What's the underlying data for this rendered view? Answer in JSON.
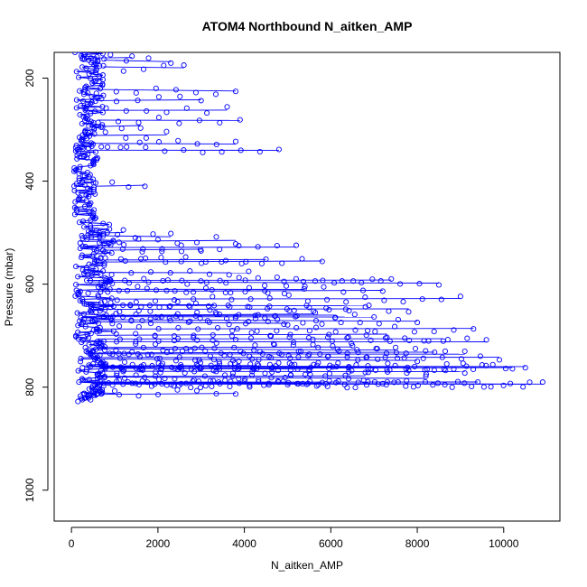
{
  "chart_data": {
    "type": "scatter",
    "title": "ATOM4 Northbound N_aitken_AMP",
    "xlabel": "N_aitken_AMP",
    "ylabel": "Pressure (mbar)",
    "xlim": [
      -400,
      11300
    ],
    "ylim": [
      1060,
      150
    ],
    "y_reversed": true,
    "x_ticks": [
      0,
      2000,
      4000,
      6000,
      8000,
      10000
    ],
    "y_ticks": [
      200,
      400,
      600,
      800,
      1000
    ],
    "grid": false,
    "legend": "none",
    "series": [
      {
        "style": "b",
        "marker": "open-circle",
        "color": "#0000ff",
        "points": [
          [
            250,
            158
          ],
          [
            1400,
            160
          ],
          [
            2300,
            168
          ],
          [
            2600,
            180
          ],
          [
            3800,
            225
          ],
          [
            3000,
            242
          ],
          [
            3600,
            262
          ],
          [
            3900,
            282
          ],
          [
            1600,
            292
          ],
          [
            2200,
            310
          ],
          [
            3800,
            328
          ],
          [
            4800,
            340
          ],
          [
            600,
            352
          ],
          [
            1700,
            408
          ],
          [
            1200,
            500
          ],
          [
            2300,
            508
          ],
          [
            3800,
            515
          ],
          [
            5200,
            528
          ],
          [
            3000,
            532
          ],
          [
            4500,
            552
          ],
          [
            5800,
            555
          ],
          [
            4100,
            578
          ],
          [
            7400,
            592
          ],
          [
            8500,
            598
          ],
          [
            5400,
            610
          ],
          [
            7200,
            612
          ],
          [
            9000,
            628
          ],
          [
            3300,
            640
          ],
          [
            6800,
            642
          ],
          [
            7800,
            648
          ],
          [
            5600,
            658
          ],
          [
            6100,
            660
          ],
          [
            7000,
            664
          ],
          [
            8000,
            672
          ],
          [
            5000,
            676
          ],
          [
            9300,
            686
          ],
          [
            7300,
            697
          ],
          [
            8600,
            706
          ],
          [
            9600,
            712
          ],
          [
            6500,
            722
          ],
          [
            7500,
            728
          ],
          [
            8400,
            732
          ],
          [
            9100,
            736
          ],
          [
            9900,
            742
          ],
          [
            8000,
            748
          ],
          [
            9500,
            760
          ],
          [
            10500,
            760
          ],
          [
            7800,
            762
          ],
          [
            10200,
            762
          ],
          [
            3000,
            764
          ],
          [
            4300,
            758
          ],
          [
            5500,
            765
          ],
          [
            9100,
            770
          ],
          [
            6800,
            778
          ],
          [
            8200,
            783
          ],
          [
            9400,
            790
          ],
          [
            5800,
            792
          ],
          [
            7200,
            794
          ],
          [
            10600,
            794
          ],
          [
            10900,
            794
          ],
          [
            3800,
            812
          ],
          [
            1000,
            812
          ],
          [
            500,
            815
          ],
          [
            250,
            820
          ],
          [
            150,
            822
          ],
          [
            300,
            818
          ],
          [
            700,
            812
          ]
        ]
      }
    ]
  }
}
